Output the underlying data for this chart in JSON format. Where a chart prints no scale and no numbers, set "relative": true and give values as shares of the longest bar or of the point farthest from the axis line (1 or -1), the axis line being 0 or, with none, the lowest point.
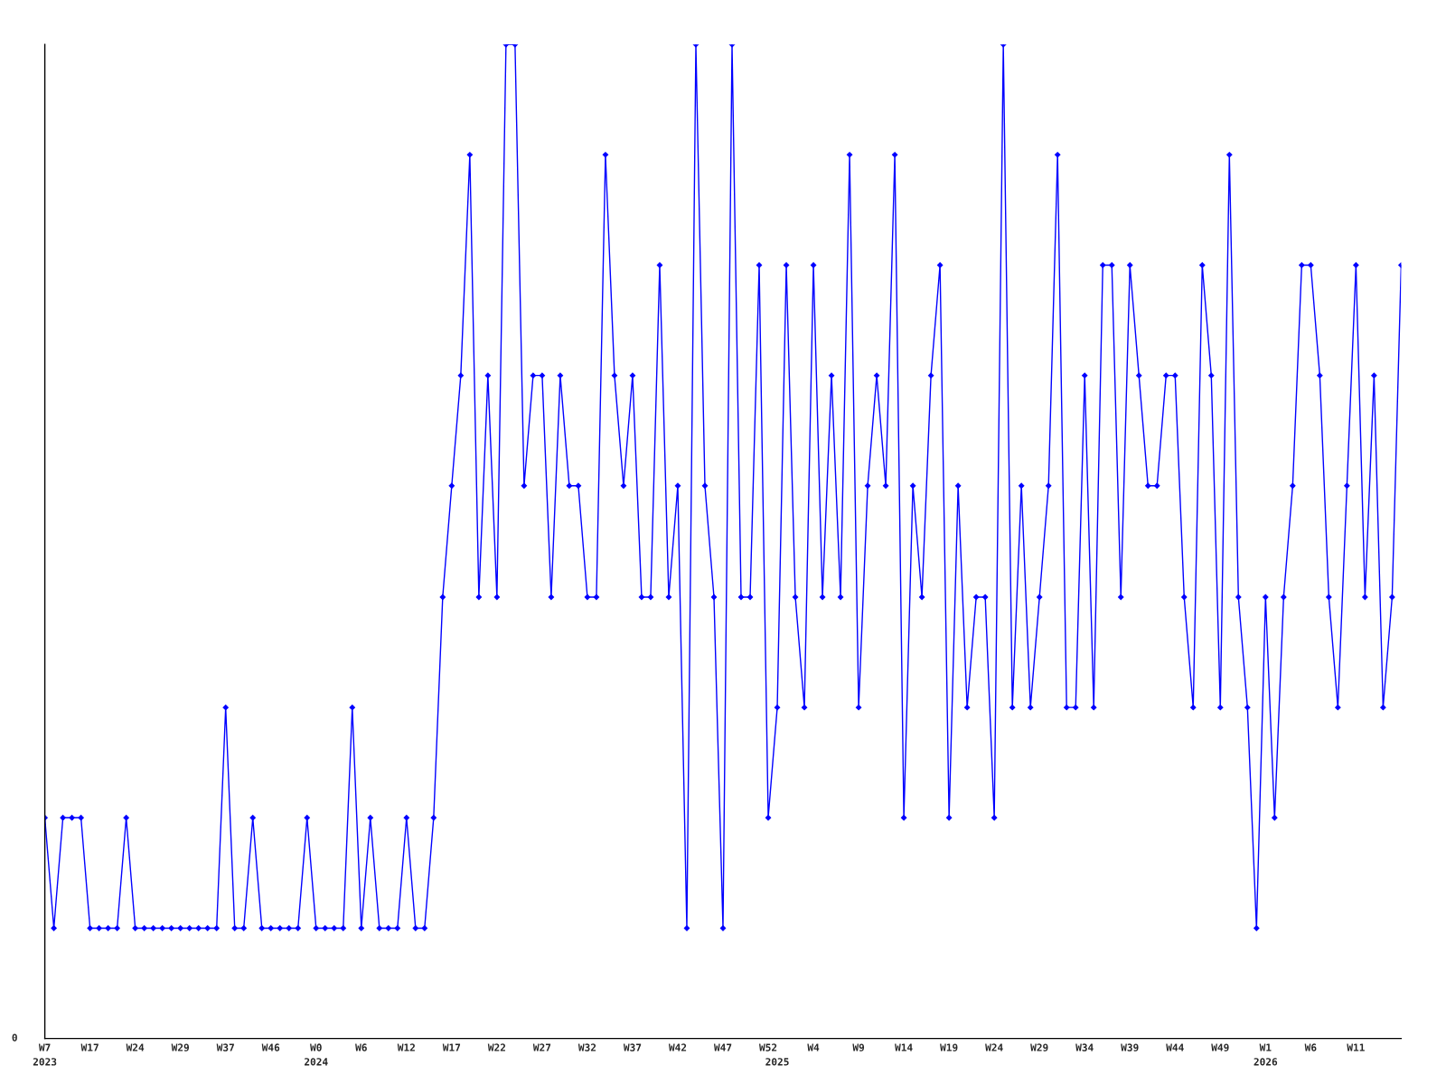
{
  "chart_data": {
    "type": "line",
    "relative": true,
    "categories": [
      "W7\n2023",
      null,
      null,
      null,
      null,
      "W17",
      null,
      null,
      null,
      null,
      "W24",
      null,
      null,
      null,
      null,
      "W29",
      null,
      null,
      null,
      null,
      "W37",
      null,
      null,
      null,
      null,
      "W46",
      null,
      null,
      null,
      null,
      "W0\n2024",
      null,
      null,
      null,
      null,
      "W6",
      null,
      null,
      null,
      null,
      "W12",
      null,
      null,
      null,
      null,
      "W17",
      null,
      null,
      null,
      null,
      "W22",
      null,
      null,
      null,
      null,
      "W27",
      null,
      null,
      null,
      null,
      "W32",
      null,
      null,
      null,
      null,
      "W37",
      null,
      null,
      null,
      null,
      "W42",
      null,
      null,
      null,
      null,
      "W47",
      null,
      null,
      null,
      null,
      "W52",
      "\n2025",
      null,
      null,
      null,
      "W4",
      null,
      null,
      null,
      null,
      "W9",
      null,
      null,
      null,
      null,
      "W14",
      null,
      null,
      null,
      null,
      "W19",
      null,
      null,
      null,
      null,
      "W24",
      null,
      null,
      null,
      null,
      "W29",
      null,
      null,
      null,
      null,
      "W34",
      null,
      null,
      null,
      null,
      "W39",
      null,
      null,
      null,
      null,
      "W44",
      null,
      null,
      null,
      null,
      "W49",
      null,
      null,
      null,
      null,
      "W1\n2026",
      null,
      null,
      null,
      null,
      "W6",
      null,
      null,
      null,
      null,
      "W11",
      null,
      null,
      null,
      null,
      null
    ],
    "series": [
      {
        "color": "#0000ff",
        "values": [
          0.222,
          0.111,
          0.222,
          0.222,
          0.222,
          0.111,
          0.111,
          0.111,
          0.111,
          0.222,
          0.111,
          0.111,
          0.111,
          0.111,
          0.111,
          0.111,
          0.111,
          0.111,
          0.111,
          0.111,
          0.333,
          0.111,
          0.111,
          0.222,
          0.111,
          0.111,
          0.111,
          0.111,
          0.111,
          0.222,
          0.111,
          0.111,
          0.111,
          0.111,
          0.333,
          0.111,
          0.222,
          0.111,
          0.111,
          0.111,
          0.222,
          0.111,
          0.111,
          0.222,
          0.444,
          0.556,
          0.667,
          0.889,
          0.444,
          0.667,
          0.444,
          1,
          1,
          0.556,
          0.667,
          0.667,
          0.444,
          0.667,
          0.556,
          0.556,
          0.444,
          0.444,
          0.889,
          0.667,
          0.556,
          0.667,
          0.444,
          0.444,
          0.778,
          0.444,
          0.556,
          0.111,
          1,
          0.556,
          0.444,
          0.111,
          1,
          0.444,
          0.444,
          0.778,
          0.222,
          0.333,
          0.778,
          0.444,
          0.333,
          0.778,
          0.444,
          0.667,
          0.444,
          0.889,
          0.333,
          0.556,
          0.667,
          0.556,
          0.889,
          0.222,
          0.556,
          0.444,
          0.667,
          0.778,
          0.222,
          0.556,
          0.333,
          0.444,
          0.444,
          0.222,
          1,
          0.333,
          0.556,
          0.333,
          0.444,
          0.556,
          0.889,
          0.333,
          0.333,
          0.667,
          0.333,
          0.778,
          0.778,
          0.444,
          0.778,
          0.667,
          0.556,
          0.556,
          0.667,
          0.667,
          0.444,
          0.333,
          0.778,
          0.667,
          0.333,
          0.889,
          0.444,
          0.333,
          0.111,
          0.444,
          0.222,
          0.444,
          0.556,
          0.778,
          0.778,
          0.667,
          0.444,
          0.333,
          0.556,
          0.778,
          0.444,
          0.667,
          0.333,
          0.444,
          0.778
        ]
      }
    ],
    "marker": "diamond",
    "line_style": "solid",
    "grid": false,
    "legend": false,
    "annotations": [
      "0"
    ]
  }
}
